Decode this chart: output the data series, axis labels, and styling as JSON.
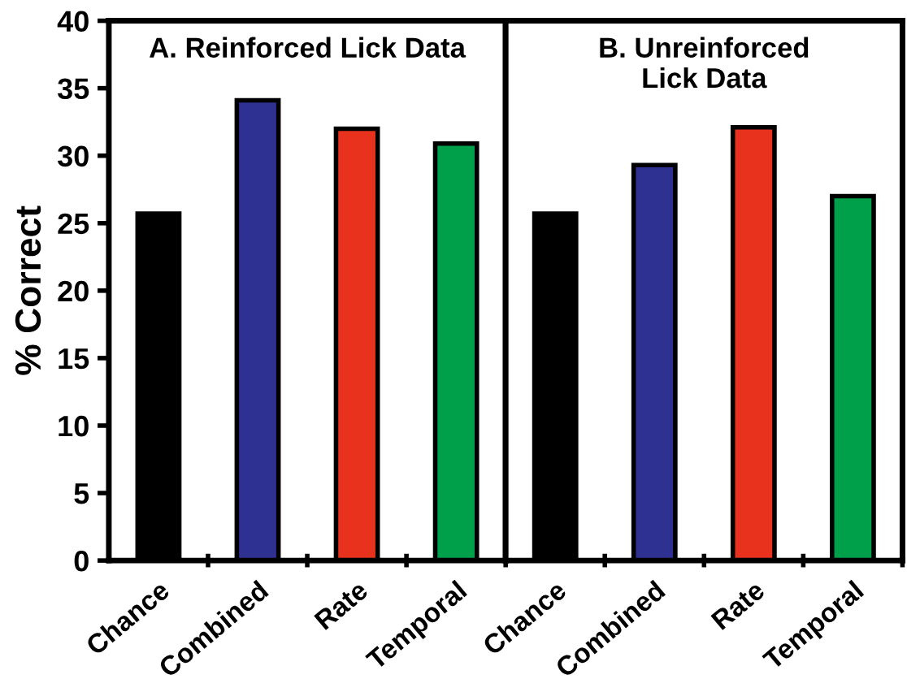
{
  "chart_data": [
    {
      "type": "bar",
      "title": "A. Reinforced Lick Data",
      "ylabel": "% Correct",
      "categories": [
        "Chance",
        "Combined",
        "Rate",
        "Temporal"
      ],
      "values": [
        25.7,
        34.1,
        32.0,
        30.9
      ],
      "colors": [
        "#000000",
        "#2e3192",
        "#e8321e",
        "#00a04b"
      ],
      "ylim": [
        0,
        40
      ],
      "yticks": [
        0,
        5,
        10,
        15,
        20,
        25,
        30,
        35,
        40
      ],
      "grid": false,
      "legend": false
    },
    {
      "type": "bar",
      "title": "B. Unreinforced\nLick Data",
      "categories": [
        "Chance",
        "Combined",
        "Rate",
        "Temporal"
      ],
      "values": [
        25.7,
        29.3,
        32.1,
        27.0
      ],
      "colors": [
        "#000000",
        "#2e3192",
        "#e8321e",
        "#00a04b"
      ],
      "ylim": [
        0,
        40
      ],
      "yticks": [
        0,
        5,
        10,
        15,
        20,
        25,
        30,
        35,
        40
      ],
      "tick_labels": "x",
      "grid": false,
      "legend": false
    }
  ]
}
